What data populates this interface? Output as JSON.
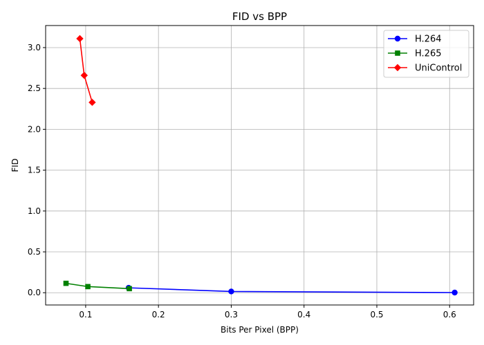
{
  "chart_data": {
    "type": "line",
    "title": "FID vs BPP",
    "xlabel": "Bits Per Pixel (BPP)",
    "ylabel": "FID",
    "xlim": [
      0.045,
      0.633
    ],
    "ylim": [
      -0.15,
      3.27
    ],
    "xticks": [
      0.1,
      0.2,
      0.3,
      0.4,
      0.5,
      0.6
    ],
    "xtick_labels": [
      "0.1",
      "0.2",
      "0.3",
      "0.4",
      "0.5",
      "0.6"
    ],
    "yticks": [
      0.0,
      0.5,
      1.0,
      1.5,
      2.0,
      2.5,
      3.0
    ],
    "ytick_labels": [
      "0.0",
      "0.5",
      "1.0",
      "1.5",
      "2.0",
      "2.5",
      "3.0"
    ],
    "grid": true,
    "legend_position": "top-right",
    "series": [
      {
        "name": "H.264",
        "color": "#0000ff",
        "marker": "circle",
        "x": [
          0.159,
          0.3,
          0.607
        ],
        "y": [
          0.06,
          0.015,
          0.002
        ]
      },
      {
        "name": "H.265",
        "color": "#008000",
        "marker": "square",
        "x": [
          0.073,
          0.103,
          0.16
        ],
        "y": [
          0.115,
          0.075,
          0.05
        ]
      },
      {
        "name": "UniControl",
        "color": "#ff0000",
        "marker": "diamond",
        "x": [
          0.092,
          0.098,
          0.109
        ],
        "y": [
          3.11,
          2.66,
          2.33
        ]
      }
    ]
  }
}
